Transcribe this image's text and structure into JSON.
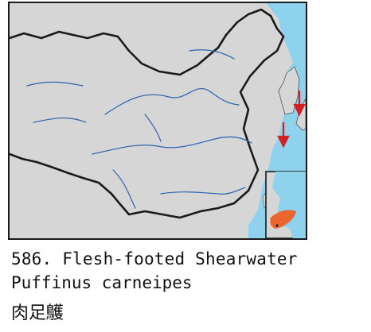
{
  "caption": {
    "number_label": "586. Flesh-footed Shearwater",
    "scientific_name": "Puffinus carneipes",
    "chinese_name": "肉足鸌"
  },
  "map": {
    "land_color": "#d6d6d6",
    "sea_color": "#8ed2ee",
    "border_color": "#1a1a1a",
    "river_color": "#2a62b0",
    "range_color": "#e9672e",
    "marker_color": "#d42020",
    "markers": [
      "red-arrow-down",
      "red-arrow-down"
    ]
  }
}
